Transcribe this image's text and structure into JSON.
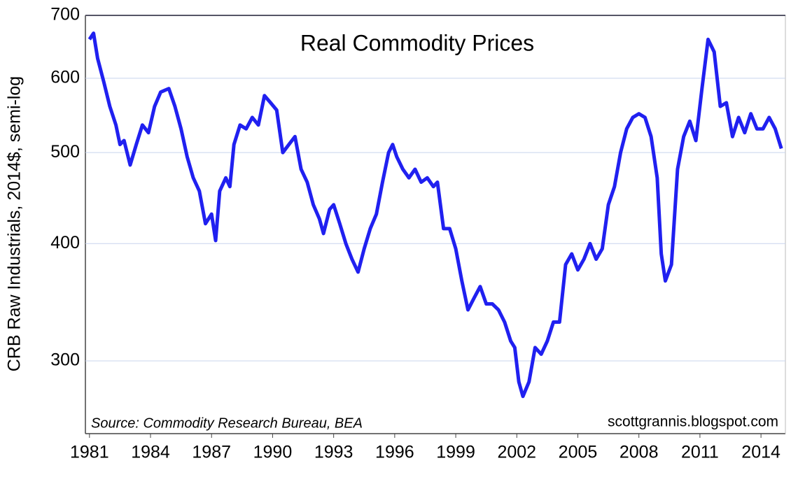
{
  "chart_data": {
    "type": "line",
    "title": "Real Commodity Prices",
    "y_label": "CRB Raw Industrials, 2014$, semi-log",
    "source": "Source: Commodity Research Bureau, BEA",
    "credit": "scottgrannis.blogspot.com",
    "log_scale": true,
    "grid": true,
    "xlim": [
      1980.8,
      2015.2
    ],
    "ylim": [
      251,
      700
    ],
    "xticks": [
      1981,
      1984,
      1987,
      1990,
      1993,
      1996,
      1999,
      2002,
      2005,
      2008,
      2011,
      2014
    ],
    "yticks": [
      300,
      400,
      500,
      600,
      700
    ],
    "x": [
      1981.0,
      1981.2,
      1981.4,
      1981.7,
      1982.0,
      1982.3,
      1982.5,
      1982.7,
      1983.0,
      1983.3,
      1983.6,
      1983.9,
      1984.2,
      1984.5,
      1984.9,
      1985.2,
      1985.5,
      1985.8,
      1986.1,
      1986.4,
      1986.7,
      1987.0,
      1987.2,
      1987.4,
      1987.7,
      1987.9,
      1988.1,
      1988.4,
      1988.7,
      1989.0,
      1989.3,
      1989.6,
      1989.9,
      1990.2,
      1990.5,
      1990.8,
      1991.1,
      1991.4,
      1991.7,
      1992.0,
      1992.3,
      1992.5,
      1992.8,
      1993.0,
      1993.3,
      1993.6,
      1993.9,
      1994.2,
      1994.5,
      1994.8,
      1995.1,
      1995.4,
      1995.7,
      1995.9,
      1996.1,
      1996.4,
      1996.7,
      1997.0,
      1997.3,
      1997.6,
      1997.9,
      1998.1,
      1998.4,
      1998.7,
      1999.0,
      1999.3,
      1999.6,
      1999.9,
      2000.2,
      2000.5,
      2000.8,
      2001.1,
      2001.4,
      2001.7,
      2001.9,
      2002.1,
      2002.3,
      2002.6,
      2002.9,
      2003.2,
      2003.5,
      2003.8,
      2004.1,
      2004.4,
      2004.7,
      2005.0,
      2005.3,
      2005.6,
      2005.9,
      2006.2,
      2006.5,
      2006.8,
      2007.1,
      2007.4,
      2007.7,
      2008.0,
      2008.3,
      2008.6,
      2008.9,
      2009.1,
      2009.3,
      2009.6,
      2009.9,
      2010.2,
      2010.5,
      2010.8,
      2011.1,
      2011.4,
      2011.7,
      2012.0,
      2012.3,
      2012.6,
      2012.9,
      2013.2,
      2013.5,
      2013.8,
      2014.1,
      2014.4,
      2014.7,
      2015.0
    ],
    "series": [
      {
        "color": "#2020f0",
        "values": [
          660,
          670,
          630,
          595,
          560,
          535,
          510,
          515,
          485,
          510,
          535,
          525,
          560,
          580,
          585,
          560,
          530,
          495,
          470,
          455,
          420,
          430,
          403,
          455,
          470,
          460,
          510,
          535,
          530,
          545,
          535,
          575,
          565,
          555,
          500,
          510,
          520,
          480,
          465,
          440,
          425,
          410,
          435,
          440,
          420,
          400,
          385,
          373,
          395,
          415,
          430,
          465,
          500,
          510,
          495,
          480,
          470,
          480,
          465,
          470,
          460,
          465,
          415,
          415,
          395,
          365,
          340,
          350,
          360,
          345,
          345,
          340,
          330,
          315,
          310,
          285,
          275,
          285,
          310,
          305,
          315,
          330,
          330,
          380,
          390,
          375,
          385,
          400,
          385,
          395,
          440,
          460,
          500,
          530,
          545,
          550,
          545,
          520,
          470,
          390,
          365,
          380,
          480,
          520,
          540,
          515,
          585,
          660,
          640,
          560,
          565,
          520,
          545,
          525,
          550,
          530,
          530,
          545,
          530,
          505
        ]
      }
    ]
  }
}
